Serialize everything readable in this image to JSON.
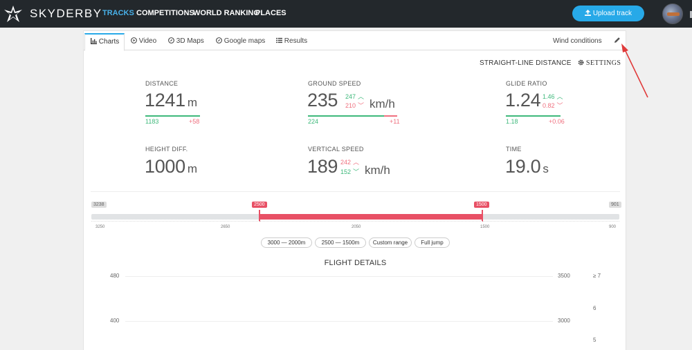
{
  "nav": {
    "brand": "SKYDERBY",
    "items": [
      "TRACKS",
      "COMPETITIONS",
      "WORLD RANKING",
      "PLACES"
    ],
    "upload": "Upload track"
  },
  "tabs": [
    "Charts",
    "Video",
    "3D Maps",
    "Google maps",
    "Results"
  ],
  "wind": "Wind conditions",
  "header": {
    "sld": "STRAIGHT-LINE DISTANCE",
    "settings": "SETTINGS"
  },
  "metrics": {
    "distance": {
      "label": "DISTANCE",
      "value": "1241",
      "unit": "m",
      "low": "1183",
      "high": "+58"
    },
    "ground": {
      "label": "GROUND SPEED",
      "value": "235",
      "unit": "km/h",
      "up": "247",
      "down": "210",
      "low": "224",
      "high": "+11"
    },
    "glide": {
      "label": "GLIDE RATIO",
      "value": "1.24",
      "up": "1.46",
      "down": "0.82",
      "low": "1.18",
      "high": "+0.06"
    },
    "height": {
      "label": "HEIGHT DIFF.",
      "value": "1000",
      "unit": "m"
    },
    "vertical": {
      "label": "VERTICAL SPEED",
      "value": "189",
      "unit": "km/h",
      "up": "242",
      "down": "152"
    },
    "time": {
      "label": "TIME",
      "value": "19.0",
      "unit": "s"
    }
  },
  "range": {
    "left_badge": "3238",
    "right_badge": "901",
    "sel_from": "2500",
    "sel_to": "1500",
    "ticks": [
      "3250",
      "2650",
      "2050",
      "1500",
      "900"
    ]
  },
  "range_buttons": [
    "3000 — 2000m",
    "2500 — 1500m",
    "Custom range",
    "Full jump"
  ],
  "flight": {
    "title": "FLIGHT DETAILS",
    "left_axis": [
      "480",
      "400"
    ],
    "right_axis": [
      "3500",
      "3000"
    ],
    "far_axis": [
      "≥ 7",
      "6",
      "5"
    ]
  },
  "colors": {
    "accent": "#27a9e8",
    "green": "#3db87a",
    "red": "#e85065",
    "nav_bg": "#23282c"
  }
}
